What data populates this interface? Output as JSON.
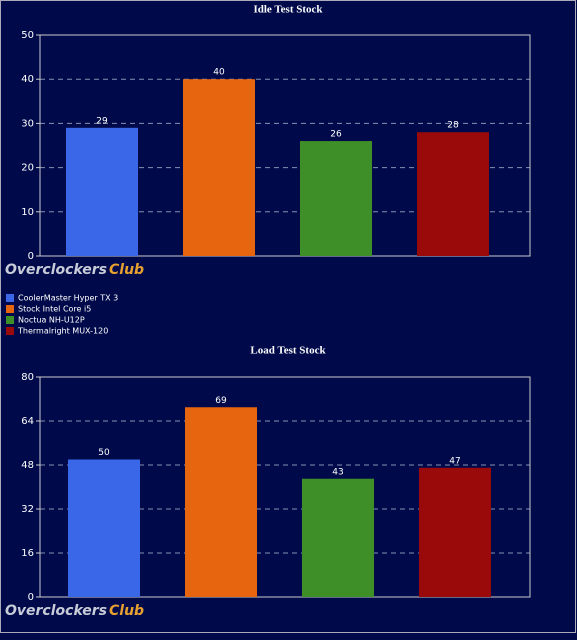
{
  "chart_data": [
    {
      "type": "bar",
      "title": "Idle Test Stock",
      "values": [
        29,
        40,
        26,
        28
      ],
      "ylim": [
        0,
        50
      ],
      "yticks": [
        0,
        10,
        20,
        30,
        40,
        50
      ],
      "grid": true
    },
    {
      "type": "bar",
      "title": "Load Test Stock",
      "values": [
        50,
        69,
        43,
        47
      ],
      "ylim": [
        0,
        80
      ],
      "yticks": [
        0,
        16,
        32,
        48,
        64,
        80
      ],
      "grid": true
    }
  ],
  "legend": [
    {
      "name": "CoolerMaster Hyper TX 3",
      "color": "#3a66e8"
    },
    {
      "name": "Stock Intel Core i5",
      "color": "#e8650f"
    },
    {
      "name": "Noctua NH-U12P",
      "color": "#3f8f28"
    },
    {
      "name": "Thermalright MUX-120",
      "color": "#9a0a0a"
    }
  ],
  "watermark": {
    "left": "Overclockers",
    "right": "Club"
  }
}
